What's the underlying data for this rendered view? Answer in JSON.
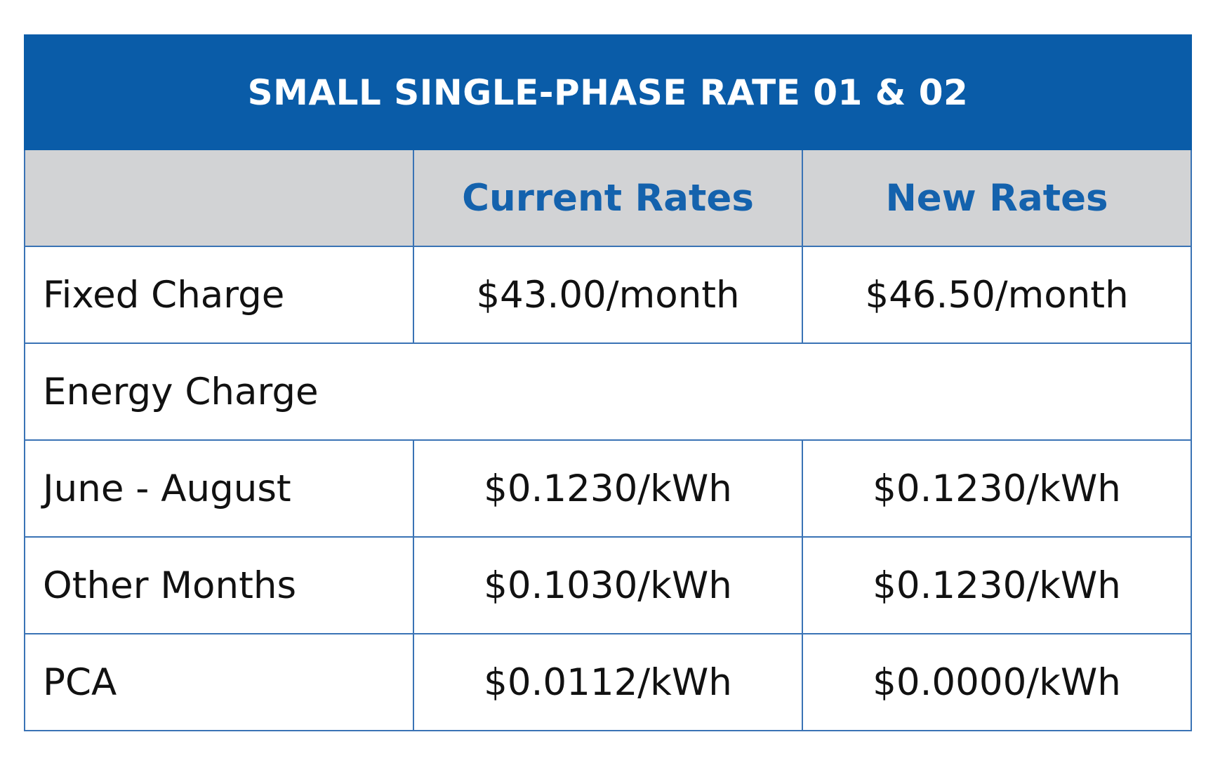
{
  "table": {
    "title": "SMALL SINGLE-PHASE RATE 01 & 02",
    "headers": [
      "",
      "Current Rates",
      "New Rates"
    ],
    "rows": [
      {
        "label": "Fixed Charge",
        "current": "$43.00/month",
        "new": "$46.50/month"
      },
      {
        "label": "Energy Charge",
        "current": "",
        "new": ""
      },
      {
        "label": "June - August",
        "current": "$0.1230/kWh",
        "new": "$0.1230/kWh"
      },
      {
        "label": "Other Months",
        "current": "$0.1030/kWh",
        "new": "$0.1230/kWh"
      },
      {
        "label": "PCA",
        "current": "$0.0112/kWh",
        "new": "$0.0000/kWh"
      }
    ]
  },
  "colors": {
    "title_background": "#0a5ca8",
    "header_background": "#d2d3d5",
    "header_text": "#1462ad",
    "border": "#3a73b5"
  }
}
